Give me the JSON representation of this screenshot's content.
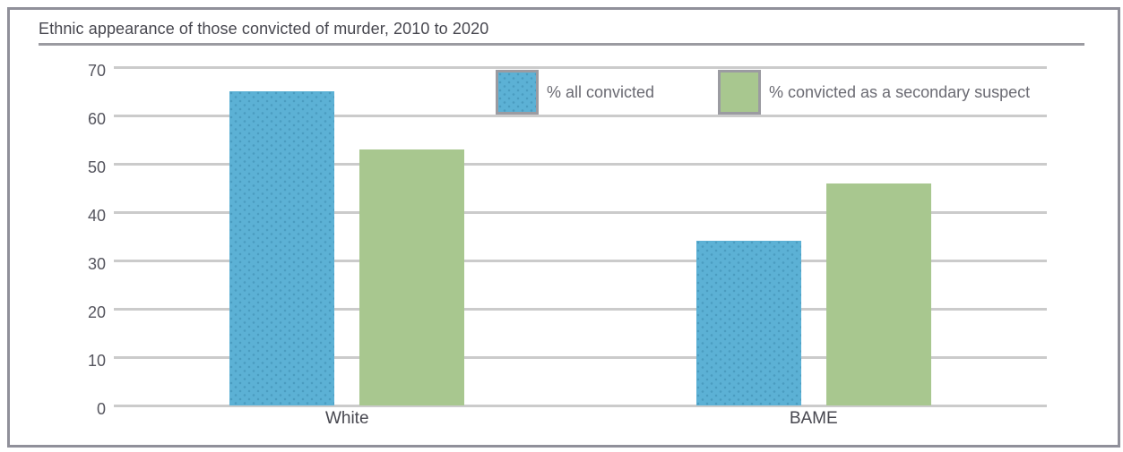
{
  "title": "Ethnic appearance of those convicted of murder, 2010 to 2020",
  "chart_data": {
    "type": "bar",
    "title": "Ethnic appearance of those convicted of murder, 2010 to 2020",
    "categories": [
      "White",
      "BAME"
    ],
    "series": [
      {
        "name": "% all convicted",
        "color": "#5cb1d5",
        "pattern": "dots",
        "values": [
          65,
          34
        ]
      },
      {
        "name": "% convicted as a secondary suspect",
        "color": "#a8c78f",
        "pattern": "solid",
        "values": [
          53,
          46
        ]
      }
    ],
    "xlabel": "",
    "ylabel": "",
    "ylim": [
      0,
      70
    ],
    "yticks": [
      0,
      10,
      20,
      30,
      40,
      50,
      60,
      70
    ],
    "grid": true,
    "legend_position": "top-inside"
  },
  "colors": {
    "series_all_convicted": "#5cb1d5",
    "series_secondary_suspect": "#a8c78f",
    "gridline": "#cbcbcb",
    "frame_border": "#90909a",
    "title_rule": "#9b9ba1",
    "legend_swatch_border": "#9b9ba1",
    "title_text": "#47474f",
    "axis_text": "#55555e",
    "legend_text": "#6a6a72"
  }
}
